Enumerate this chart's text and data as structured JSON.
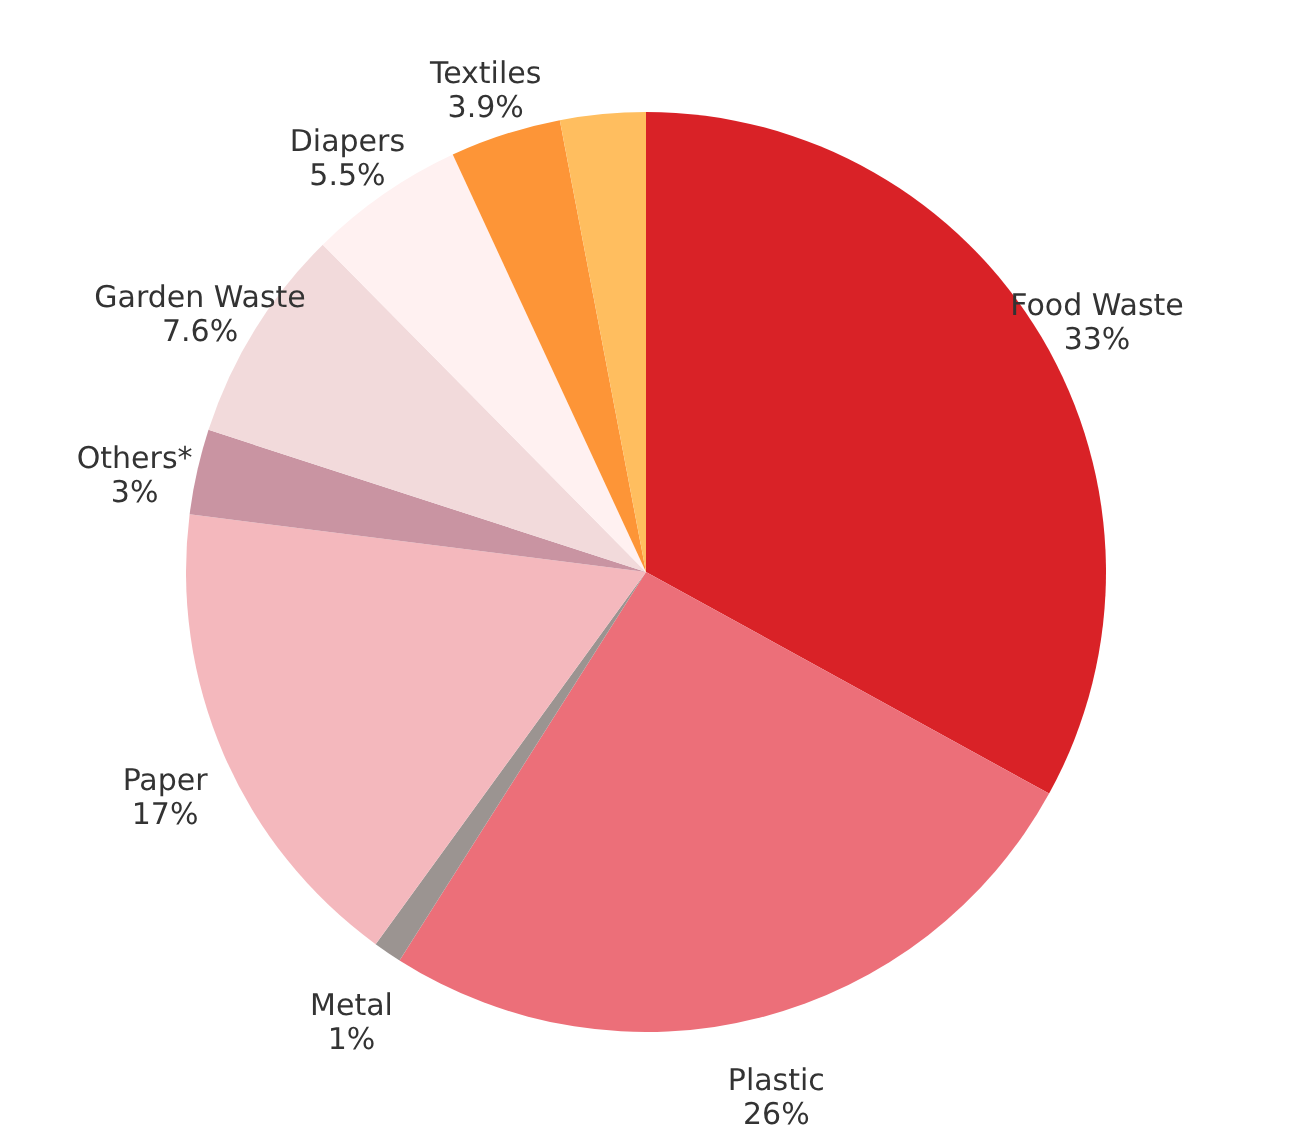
{
  "chart_data": {
    "type": "pie",
    "categories": [
      "Food Waste",
      "Plastic",
      "Metal",
      "Paper",
      "Others*",
      "Garden Waste",
      "Diapers",
      "Textiles",
      null
    ],
    "values": [
      33,
      26,
      1,
      17,
      3,
      7.6,
      5.5,
      3.9,
      3
    ],
    "value_labels": [
      "33%",
      "26%",
      "1%",
      "17%",
      "3%",
      "7.6%",
      "5.5%",
      "3.9%",
      null
    ],
    "colors": [
      "#d92227",
      "#ec6f79",
      "#9b9491",
      "#f4b8bd",
      "#c994a2",
      "#f2dadb",
      "#fff1f1",
      "#fd9537",
      "#ffbe5f"
    ]
  }
}
